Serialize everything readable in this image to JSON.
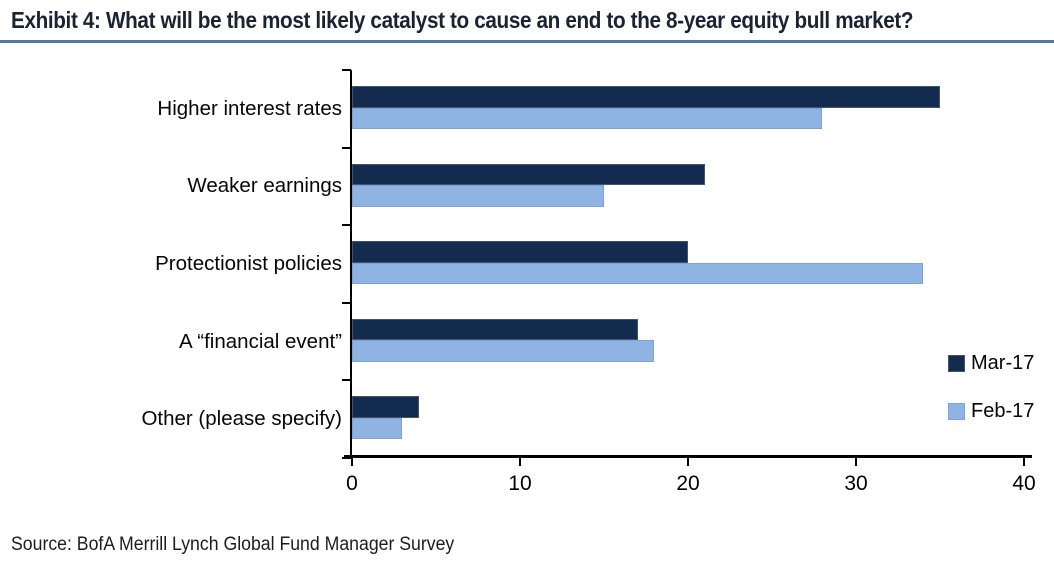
{
  "title": "Exhibit 4: What will be the most likely catalyst to cause an end to the 8-year equity bull market?",
  "source": "Source: BofA Merrill Lynch Global Fund Manager Survey",
  "colors": {
    "mar17": "#122b4f",
    "feb17": "#8fb4e3",
    "title_text": "#1a2332",
    "title_underline": "#54789f",
    "axis": "#000000"
  },
  "chart_data": {
    "type": "bar",
    "orientation": "horizontal",
    "title": "Exhibit 4: What will be the most likely catalyst to cause an end to the 8-year equity bull market?",
    "categories": [
      "Higher interest rates",
      "Weaker earnings",
      "Protectionist policies",
      "A “financial event”",
      "Other (please specify)"
    ],
    "series": [
      {
        "name": "Mar-17",
        "color": "#122b4f",
        "values": [
          35,
          21,
          20,
          17,
          4
        ]
      },
      {
        "name": "Feb-17",
        "color": "#8fb4e3",
        "values": [
          28,
          15,
          34,
          18,
          3
        ]
      }
    ],
    "xlim": [
      0,
      40
    ],
    "xticks": [
      0,
      10,
      20,
      30,
      40
    ],
    "xlabel": "",
    "ylabel": "",
    "grid": false,
    "legend_position": "right"
  }
}
